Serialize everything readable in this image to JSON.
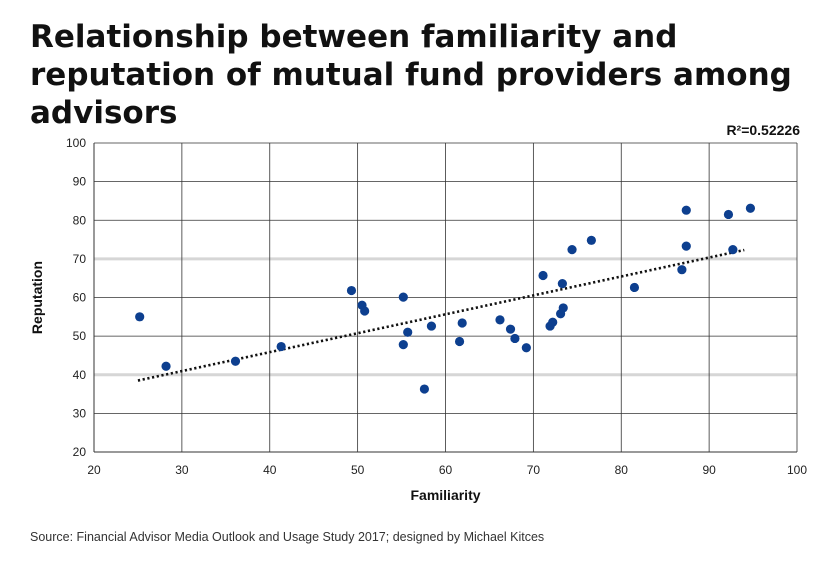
{
  "title": "Relationship between familiarity and reputation of mutual fund providers among advisors",
  "annotation": "R²=0.52226",
  "source": "Source: Financial Advisor Media Outlook and Usage Study 2017; designed by Michael Kitces",
  "colors": {
    "point": "#0d3f8f",
    "trendline": "#111111",
    "grid": "#333333",
    "highlight_band": "#d6d6d6"
  },
  "chart_data": {
    "type": "scatter",
    "xlabel": "Familiarity",
    "ylabel": "Reputation",
    "xlim": [
      20,
      100
    ],
    "ylim": [
      20,
      100
    ],
    "x_ticks": [
      20,
      30,
      40,
      50,
      60,
      70,
      80,
      90,
      100
    ],
    "y_ticks": [
      20,
      30,
      40,
      50,
      60,
      70,
      80,
      90,
      100
    ],
    "grid": true,
    "highlight_y": [
      40,
      70
    ],
    "trendline": {
      "style": "dotted",
      "x": [
        25,
        94
      ],
      "y": [
        38.5,
        72.3
      ],
      "r_squared": 0.52226
    },
    "points": [
      {
        "x": 25.2,
        "y": 55.0
      },
      {
        "x": 28.2,
        "y": 42.2
      },
      {
        "x": 36.1,
        "y": 43.5
      },
      {
        "x": 41.3,
        "y": 47.3
      },
      {
        "x": 49.3,
        "y": 61.8
      },
      {
        "x": 50.5,
        "y": 58.0
      },
      {
        "x": 50.8,
        "y": 56.5
      },
      {
        "x": 55.2,
        "y": 60.1
      },
      {
        "x": 55.2,
        "y": 47.8
      },
      {
        "x": 55.7,
        "y": 51.0
      },
      {
        "x": 57.6,
        "y": 36.3
      },
      {
        "x": 58.4,
        "y": 52.6
      },
      {
        "x": 61.6,
        "y": 48.6
      },
      {
        "x": 61.9,
        "y": 53.4
      },
      {
        "x": 66.2,
        "y": 54.2
      },
      {
        "x": 67.4,
        "y": 51.8
      },
      {
        "x": 67.9,
        "y": 49.4
      },
      {
        "x": 69.2,
        "y": 47.0
      },
      {
        "x": 71.1,
        "y": 65.7
      },
      {
        "x": 71.9,
        "y": 52.6
      },
      {
        "x": 72.2,
        "y": 53.6
      },
      {
        "x": 73.1,
        "y": 55.8
      },
      {
        "x": 73.3,
        "y": 63.6
      },
      {
        "x": 73.4,
        "y": 57.3
      },
      {
        "x": 74.4,
        "y": 72.4
      },
      {
        "x": 76.6,
        "y": 74.8
      },
      {
        "x": 81.5,
        "y": 62.6
      },
      {
        "x": 86.9,
        "y": 67.2
      },
      {
        "x": 87.4,
        "y": 82.6
      },
      {
        "x": 87.4,
        "y": 73.3
      },
      {
        "x": 92.2,
        "y": 81.5
      },
      {
        "x": 92.7,
        "y": 72.4
      },
      {
        "x": 94.7,
        "y": 83.1
      }
    ]
  }
}
